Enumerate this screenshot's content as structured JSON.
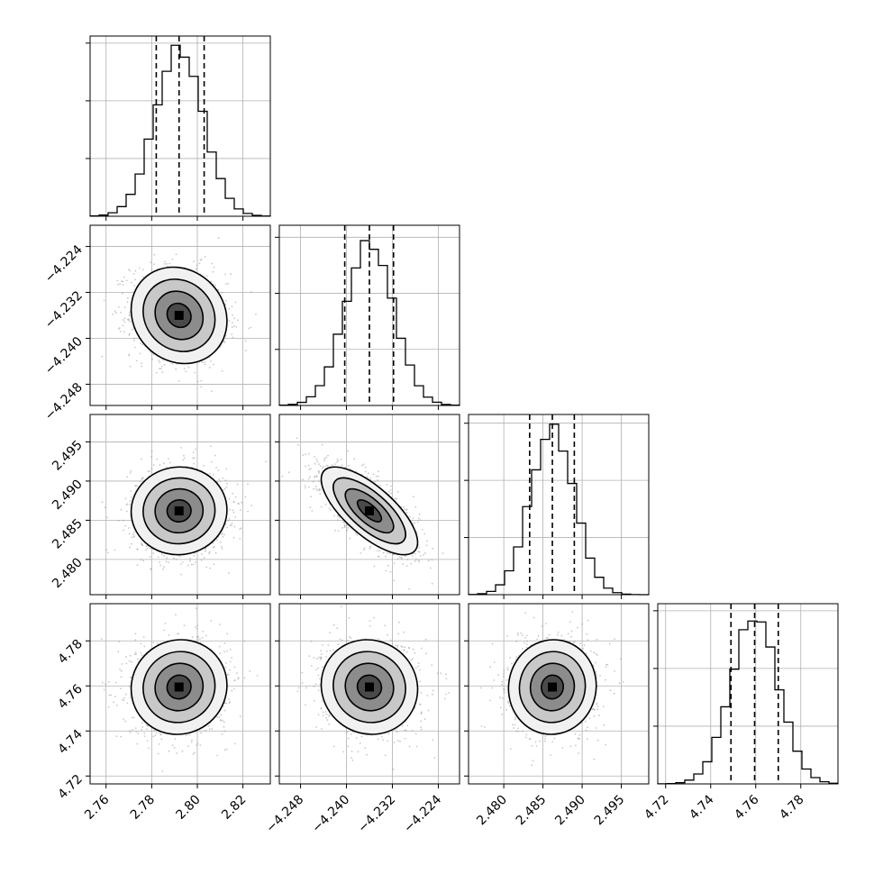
{
  "chart_data": {
    "type": "corner",
    "grid": true,
    "parameters": [
      {
        "ticks": [
          2.76,
          2.78,
          2.8,
          2.82
        ],
        "tick_labels": [
          "2.76",
          "2.78",
          "2.80",
          "2.82"
        ],
        "range": [
          2.753,
          2.832
        ],
        "center": 2.792,
        "sigma": 0.0105,
        "quantiles": [
          2.782,
          2.792,
          2.803
        ],
        "hist_max": 1.02
      },
      {
        "ticks": [
          -4.248,
          -4.24,
          -4.232,
          -4.224
        ],
        "tick_labels": [
          "−4.248",
          "−4.240",
          "−4.232",
          "−4.224"
        ],
        "range": [
          -4.2517,
          -4.2203
        ],
        "center": -4.236,
        "sigma": 0.0042,
        "quantiles": [
          -4.2403,
          -4.236,
          -4.2318
        ],
        "hist_max": 1.05
      },
      {
        "ticks": [
          2.48,
          2.485,
          2.49,
          2.495
        ],
        "tick_labels": [
          "2.480",
          "2.485",
          "2.490",
          "2.495"
        ],
        "range": [
          2.4755,
          2.4985
        ],
        "center": 2.4862,
        "sigma": 0.0028,
        "quantiles": [
          2.4833,
          2.4862,
          2.489
        ],
        "hist_max": 1.03
      },
      {
        "ticks": [
          4.72,
          4.74,
          4.76,
          4.78
        ],
        "tick_labels": [
          "4.72",
          "4.74",
          "4.76",
          "4.78"
        ],
        "range": [
          4.7165,
          4.7965
        ],
        "center": 4.7595,
        "sigma": 0.0105,
        "quantiles": [
          4.749,
          4.7595,
          4.77
        ],
        "hist_max": 1.02
      }
    ],
    "correlations": {
      "1-0": -0.12,
      "2-0": 0.02,
      "2-1": -0.72,
      "3-0": 0.04,
      "3-1": -0.05,
      "3-2": 0.03
    },
    "hist_bins": 20,
    "hist_tick_count": 3,
    "colors": {
      "axes": "#000000",
      "grid": "#b0b0b0",
      "points": "#9a9a9a",
      "contour": "#000000"
    }
  }
}
